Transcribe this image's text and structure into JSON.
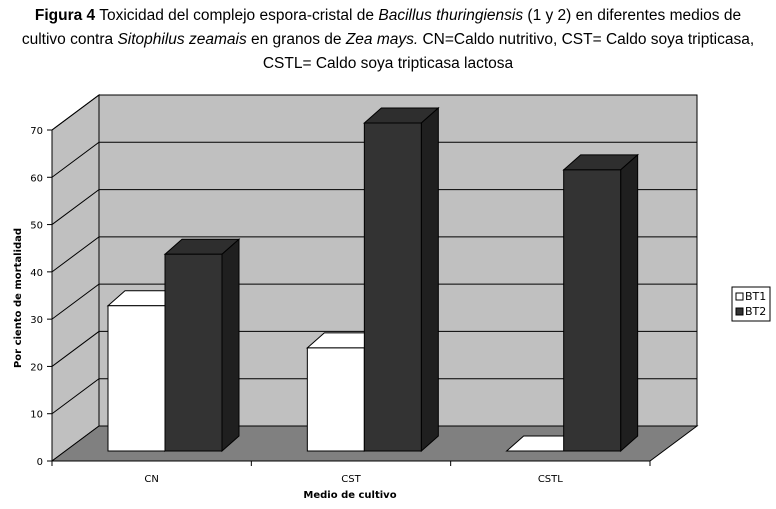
{
  "caption": {
    "fig_label": "Figura 4",
    "t1": " Toxicidad del complejo espora-cristal de ",
    "i1": "Bacillus thuringiensis",
    "t2": " (1 y 2) en diferentes medios de cultivo contra ",
    "i2": "Sitophilus zeamais",
    "t3": " en granos de ",
    "i3": "Zea mays.",
    "t4": " CN=Caldo nutritivo, CST= Caldo soya tripticasa, CSTL= Caldo soya tripticasa lactosa"
  },
  "chart_data": {
    "type": "bar",
    "categories": [
      "CN",
      "CST",
      "CSTL"
    ],
    "series": [
      {
        "name": "BT1",
        "values": [
          31,
          22,
          0
        ],
        "color": "#ffffff"
      },
      {
        "name": "BT2",
        "values": [
          42,
          70,
          60
        ],
        "color": "#333333"
      }
    ],
    "xlabel": "Medio de cultivo",
    "ylabel": "Por ciento de mortalidad",
    "ylim": [
      0,
      70
    ],
    "yticks": [
      0,
      10,
      20,
      30,
      40,
      50,
      60,
      70
    ],
    "grid": true,
    "legend": "right",
    "wall_color": "#c0c0c0",
    "floor_color": "#808080"
  }
}
